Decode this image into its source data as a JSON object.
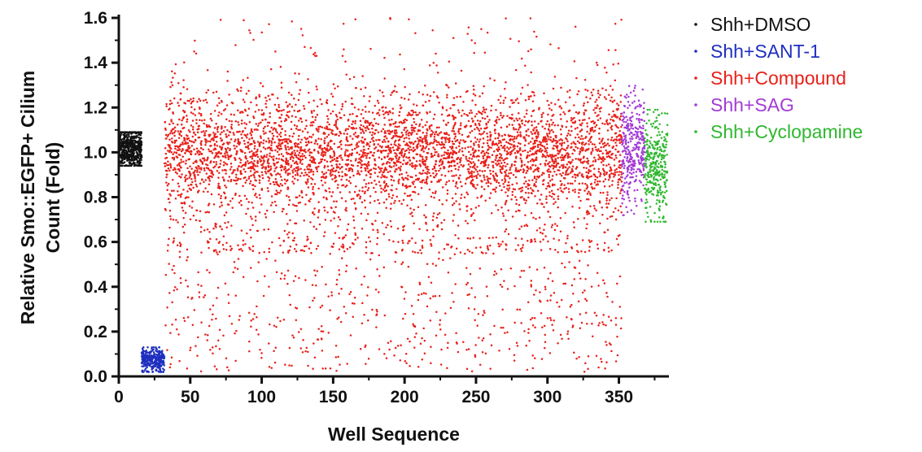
{
  "chart_data": {
    "type": "scatter",
    "title": "",
    "xlabel": "Well Sequence",
    "ylabel_line1": "Relative Smo::EGFP+ Cilium",
    "ylabel_line2": "Count (Fold)",
    "xlim": [
      0,
      385
    ],
    "ylim": [
      0,
      1.6
    ],
    "x_ticks": [
      "0",
      "50",
      "100",
      "150",
      "200",
      "250",
      "300",
      "350"
    ],
    "y_ticks": [
      "0.0",
      "0.2",
      "0.4",
      "0.6",
      "0.8",
      "1.0",
      "1.2",
      "1.4",
      "1.6"
    ],
    "grid": false,
    "legend_position": "right",
    "series": [
      {
        "name": "Shh+DMSO",
        "color": "#111111",
        "x_range": [
          0,
          16
        ],
        "y_center": 1.02,
        "y_spread": 0.05,
        "y_min": 0.94,
        "y_max": 1.09,
        "points": 500
      },
      {
        "name": "Shh+SANT-1",
        "color": "#1f2fbf",
        "x_range": [
          16,
          32
        ],
        "y_center": 0.07,
        "y_spread": 0.03,
        "y_min": 0.02,
        "y_max": 0.13,
        "points": 320
      },
      {
        "name": "Shh+Compound",
        "color": "#e8211a",
        "x_range": [
          32,
          352
        ],
        "y_center": 1.0,
        "y_spread": 0.11,
        "y_min": 0.0,
        "y_max": 1.6,
        "points": 5200
      },
      {
        "name": "Shh+SAG",
        "color": "#a43ad6",
        "x_range": [
          352,
          368
        ],
        "y_center": 1.0,
        "y_spread": 0.12,
        "y_min": 0.72,
        "y_max": 1.3,
        "points": 320
      },
      {
        "name": "Shh+Cyclopamine",
        "color": "#2fb82f",
        "x_range": [
          368,
          384
        ],
        "y_center": 0.93,
        "y_spread": 0.12,
        "y_min": 0.69,
        "y_max": 1.19,
        "points": 320
      }
    ]
  }
}
